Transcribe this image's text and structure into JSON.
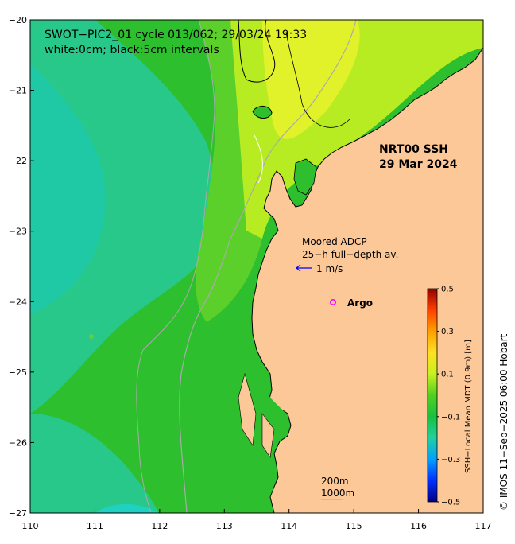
{
  "title": {
    "line1": "SWOT−PIC2_01 cycle 013/062; 29/03/24 19:33",
    "line2": "white:0cm; black:5cm intervals"
  },
  "product": {
    "line1": "NRT00 SSH",
    "line2": "29 Mar 2024"
  },
  "adcp": {
    "line1": "Moored ADCP",
    "line2": "25−h full−depth av.",
    "scale_label": "1 m/s",
    "arrow_color": "#0000ff"
  },
  "argo": {
    "label": "Argo",
    "color": "#ff00ff"
  },
  "isobaths": {
    "line1": "200m",
    "line2": "1000m"
  },
  "colorbar": {
    "title": "SSH−Local Mean MDT (0.9m) [m]",
    "min": -0.5,
    "max": 0.5,
    "ticks": [
      "0.5",
      "0.3",
      "0.1",
      "−0.1",
      "−0.3",
      "−0.5"
    ],
    "tick_values": [
      0.5,
      0.3,
      0.1,
      -0.1,
      -0.3,
      -0.5
    ]
  },
  "axes": {
    "x_ticks": [
      "110",
      "111",
      "112",
      "113",
      "114",
      "115",
      "116",
      "117"
    ],
    "x_values": [
      110,
      111,
      112,
      113,
      114,
      115,
      116,
      117
    ],
    "y_ticks": [
      "−20",
      "−21",
      "−22",
      "−23",
      "−24",
      "−25",
      "−26",
      "−27"
    ],
    "y_values": [
      -20,
      -21,
      -22,
      -23,
      -24,
      -25,
      -26,
      -27
    ],
    "xlim": [
      110,
      117
    ],
    "ylim": [
      -27,
      -20
    ]
  },
  "credit": "© IMOS 11−Sep−2025 06:00 Hobart",
  "colors": {
    "land": "#fcc898",
    "ocean_base": "#2dbf2d",
    "ocean_cyan": "#27c88a",
    "ocean_teal": "#1fc9a6",
    "ocean_light": "#5bd02a",
    "ocean_yellowgreen": "#b8ec22",
    "ocean_yellow": "#e2f22a"
  }
}
